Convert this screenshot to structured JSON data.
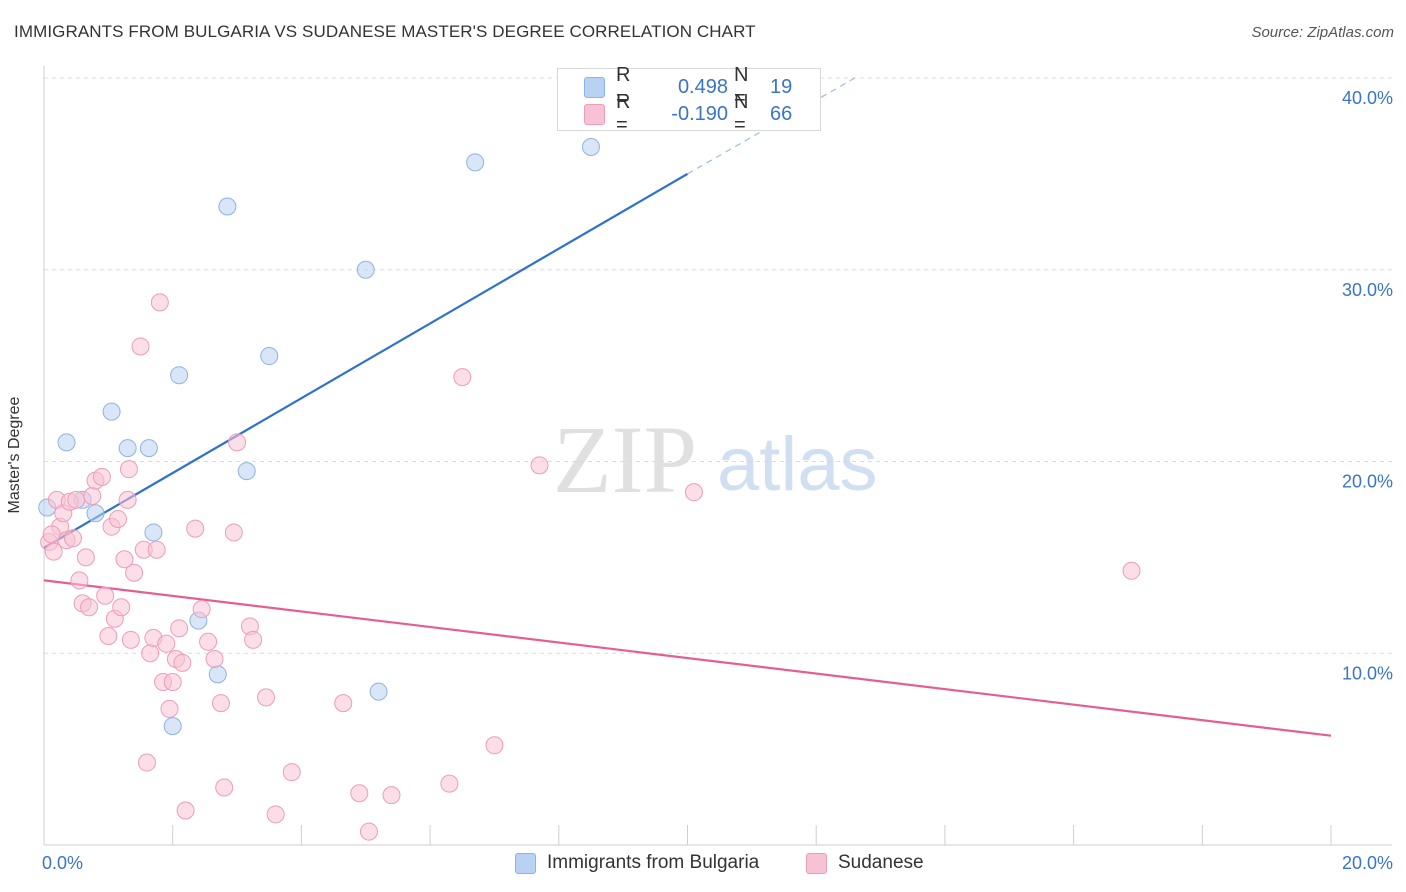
{
  "title": "IMMIGRANTS FROM BULGARIA VS SUDANESE MASTER'S DEGREE CORRELATION CHART",
  "source": "Source: ZipAtlas.com",
  "watermark": {
    "zip": "ZIP",
    "atlas": "atlas"
  },
  "colors": {
    "blue_fill": "#b9d1f3",
    "blue_stroke": "#8eb3e6",
    "blue_line": "#2f72cc",
    "pink_fill": "#f7c3d4",
    "pink_stroke": "#ee9db7",
    "pink_line": "#e35f92",
    "tick_text": "#3a74c8",
    "grid": "#dcdcdc"
  },
  "legend": {
    "r_label": "R =",
    "n_label": "N =",
    "series": [
      {
        "r": "0.498",
        "n": "19"
      },
      {
        "r": "-0.190",
        "n": "66"
      }
    ]
  },
  "chart_data": {
    "type": "scatter",
    "title": "IMMIGRANTS FROM BULGARIA VS SUDANESE MASTER'S DEGREE CORRELATION CHART",
    "xlabel": "",
    "ylabel": "Master's Degree",
    "xlim": [
      0,
      20
    ],
    "ylim": [
      0,
      40
    ],
    "x_tick_labels": [
      "0.0%",
      "20.0%"
    ],
    "y_ticks": [
      10,
      20,
      30,
      40
    ],
    "y_tick_labels": [
      "10.0%",
      "20.0%",
      "30.0%",
      "40.0%"
    ],
    "grid": true,
    "series": [
      {
        "name": "Immigrants from Bulgaria",
        "color": "blue",
        "trend": {
          "x0": 0,
          "y0": 15.5,
          "x1": 10,
          "y1": 35.0,
          "x1_dashed": 12.6,
          "y1_dashed": 40.0
        },
        "points": [
          [
            0.05,
            17.6
          ],
          [
            0.35,
            21.0
          ],
          [
            0.6,
            18.0
          ],
          [
            0.8,
            17.3
          ],
          [
            1.05,
            22.6
          ],
          [
            1.3,
            20.7
          ],
          [
            1.63,
            20.7
          ],
          [
            1.7,
            16.3
          ],
          [
            2.1,
            24.5
          ],
          [
            2.4,
            11.7
          ],
          [
            2.7,
            8.9
          ],
          [
            2.85,
            33.3
          ],
          [
            3.15,
            19.5
          ],
          [
            3.5,
            25.5
          ],
          [
            5.0,
            30.0
          ],
          [
            5.2,
            8.0
          ],
          [
            6.7,
            35.6
          ],
          [
            8.5,
            36.4
          ],
          [
            2.0,
            6.2
          ]
        ]
      },
      {
        "name": "Sudanese",
        "color": "pink",
        "trend": {
          "x0": 0,
          "y0": 13.8,
          "x1": 20,
          "y1": 5.7
        },
        "points": [
          [
            0.08,
            15.8
          ],
          [
            0.15,
            15.3
          ],
          [
            0.2,
            18.0
          ],
          [
            0.25,
            16.6
          ],
          [
            0.3,
            17.3
          ],
          [
            0.35,
            15.9
          ],
          [
            0.4,
            17.9
          ],
          [
            0.5,
            18.0
          ],
          [
            0.55,
            13.8
          ],
          [
            0.6,
            12.6
          ],
          [
            0.65,
            15.0
          ],
          [
            0.7,
            12.4
          ],
          [
            0.75,
            18.2
          ],
          [
            0.8,
            19.0
          ],
          [
            0.9,
            19.2
          ],
          [
            0.95,
            13.0
          ],
          [
            1.0,
            10.9
          ],
          [
            1.05,
            16.6
          ],
          [
            1.1,
            11.8
          ],
          [
            1.15,
            17.0
          ],
          [
            1.2,
            12.4
          ],
          [
            1.25,
            14.9
          ],
          [
            1.3,
            18.0
          ],
          [
            1.32,
            19.6
          ],
          [
            1.35,
            10.7
          ],
          [
            1.4,
            14.2
          ],
          [
            1.5,
            26.0
          ],
          [
            1.55,
            15.4
          ],
          [
            1.6,
            4.3
          ],
          [
            1.65,
            10.0
          ],
          [
            1.7,
            10.8
          ],
          [
            1.75,
            15.4
          ],
          [
            1.8,
            28.3
          ],
          [
            1.85,
            8.5
          ],
          [
            1.9,
            10.5
          ],
          [
            1.95,
            7.1
          ],
          [
            2.0,
            8.5
          ],
          [
            2.05,
            9.7
          ],
          [
            2.1,
            11.3
          ],
          [
            2.15,
            9.5
          ],
          [
            2.2,
            1.8
          ],
          [
            2.35,
            16.5
          ],
          [
            2.45,
            12.3
          ],
          [
            2.55,
            10.6
          ],
          [
            2.65,
            9.7
          ],
          [
            2.75,
            7.4
          ],
          [
            2.8,
            3.0
          ],
          [
            2.95,
            16.3
          ],
          [
            3.0,
            21.0
          ],
          [
            3.2,
            11.4
          ],
          [
            3.25,
            10.7
          ],
          [
            3.45,
            7.7
          ],
          [
            3.6,
            1.6
          ],
          [
            3.85,
            3.8
          ],
          [
            4.65,
            7.4
          ],
          [
            4.9,
            2.7
          ],
          [
            5.05,
            0.7
          ],
          [
            5.4,
            2.6
          ],
          [
            6.3,
            3.2
          ],
          [
            6.5,
            24.4
          ],
          [
            7.0,
            5.2
          ],
          [
            7.7,
            19.8
          ],
          [
            10.1,
            18.4
          ],
          [
            16.9,
            14.3
          ],
          [
            0.12,
            16.2
          ],
          [
            0.45,
            16.0
          ]
        ]
      }
    ]
  },
  "bottom_legend": [
    {
      "label": "Immigrants from Bulgaria"
    },
    {
      "label": "Sudanese"
    }
  ]
}
